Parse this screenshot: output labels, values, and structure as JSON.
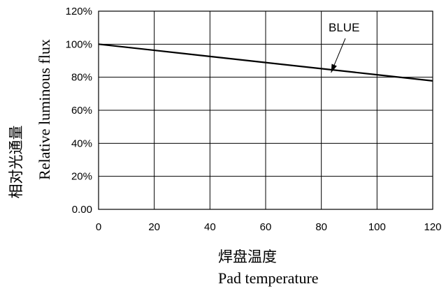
{
  "chart_data": {
    "type": "line",
    "x_label_cn": "焊盘温度",
    "x_label_en": "Pad temperature",
    "y_label_cn": "相对光通量",
    "y_label_en": "Relative luminous flux",
    "xlim": [
      0,
      120
    ],
    "ylim": [
      0,
      120
    ],
    "x_ticks": [
      0,
      20,
      40,
      60,
      80,
      100,
      120
    ],
    "y_ticks": [
      0,
      20,
      40,
      60,
      80,
      100,
      120
    ],
    "x_tick_labels": [
      "0",
      "20",
      "40",
      "60",
      "80",
      "100",
      "120"
    ],
    "y_tick_labels": [
      "0.00",
      "20%",
      "40%",
      "60%",
      "80%",
      "100%",
      "120%"
    ],
    "grid": true,
    "series": [
      {
        "name": "BLUE",
        "color": "#000000",
        "x": [
          0,
          20,
          40,
          60,
          80,
          100,
          120
        ],
        "values": [
          100,
          96.3,
          92.6,
          88.9,
          85.2,
          81.5,
          77.8
        ]
      }
    ],
    "annotation": {
      "text": "BLUE",
      "series_x": 84
    }
  }
}
